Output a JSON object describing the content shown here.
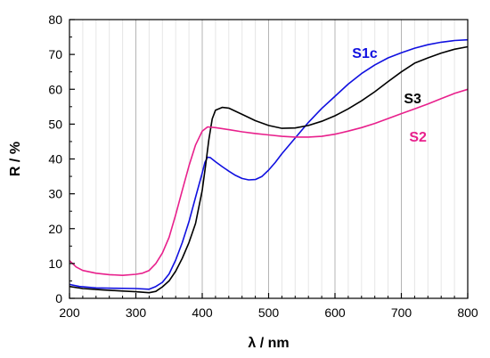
{
  "chart_data": {
    "type": "line",
    "xlabel": "λ / nm",
    "ylabel": "R / %",
    "xlim": [
      200,
      800
    ],
    "ylim": [
      0,
      80
    ],
    "xticks": [
      200,
      300,
      400,
      500,
      600,
      700,
      800
    ],
    "yticks": [
      0,
      10,
      20,
      30,
      40,
      50,
      60,
      70,
      80
    ],
    "x_minor_step": 20,
    "grid": "vertical",
    "legend": "inline labels",
    "series": [
      {
        "name": "S1c",
        "color": "#1010e0",
        "label_at": [
          645,
          69
        ],
        "points": [
          [
            200,
            4
          ],
          [
            215,
            3.4
          ],
          [
            240,
            3
          ],
          [
            270,
            2.9
          ],
          [
            300,
            2.8
          ],
          [
            320,
            2.6
          ],
          [
            330,
            3.4
          ],
          [
            340,
            4.6
          ],
          [
            350,
            7
          ],
          [
            360,
            11
          ],
          [
            370,
            16
          ],
          [
            380,
            22
          ],
          [
            390,
            29
          ],
          [
            400,
            36
          ],
          [
            404,
            39
          ],
          [
            408,
            40.5
          ],
          [
            412,
            40.4
          ],
          [
            420,
            39.2
          ],
          [
            430,
            37.8
          ],
          [
            440,
            36.5
          ],
          [
            450,
            35.3
          ],
          [
            460,
            34.4
          ],
          [
            470,
            34
          ],
          [
            480,
            34.1
          ],
          [
            490,
            35
          ],
          [
            500,
            36.8
          ],
          [
            510,
            39
          ],
          [
            520,
            41.5
          ],
          [
            540,
            46
          ],
          [
            560,
            50.5
          ],
          [
            580,
            54.5
          ],
          [
            600,
            58
          ],
          [
            620,
            61.5
          ],
          [
            640,
            64.5
          ],
          [
            660,
            67
          ],
          [
            680,
            69
          ],
          [
            700,
            70.5
          ],
          [
            720,
            71.8
          ],
          [
            740,
            72.8
          ],
          [
            760,
            73.5
          ],
          [
            780,
            74
          ],
          [
            800,
            74.2
          ]
        ]
      },
      {
        "name": "S3",
        "color": "#000000",
        "label_at": [
          717,
          56
        ],
        "points": [
          [
            200,
            3.4
          ],
          [
            220,
            2.8
          ],
          [
            250,
            2.4
          ],
          [
            280,
            2.1
          ],
          [
            300,
            1.9
          ],
          [
            320,
            1.6
          ],
          [
            330,
            2
          ],
          [
            340,
            3.3
          ],
          [
            350,
            5
          ],
          [
            360,
            7.8
          ],
          [
            370,
            11.5
          ],
          [
            380,
            16
          ],
          [
            390,
            21.5
          ],
          [
            400,
            31
          ],
          [
            405,
            38
          ],
          [
            410,
            45.5
          ],
          [
            415,
            51.5
          ],
          [
            420,
            54
          ],
          [
            430,
            54.8
          ],
          [
            440,
            54.6
          ],
          [
            460,
            52.8
          ],
          [
            480,
            51
          ],
          [
            500,
            49.6
          ],
          [
            520,
            48.8
          ],
          [
            540,
            48.9
          ],
          [
            560,
            49.6
          ],
          [
            580,
            50.8
          ],
          [
            600,
            52.4
          ],
          [
            620,
            54.4
          ],
          [
            640,
            56.7
          ],
          [
            660,
            59.3
          ],
          [
            680,
            62.2
          ],
          [
            700,
            65
          ],
          [
            720,
            67.5
          ],
          [
            740,
            69
          ],
          [
            760,
            70.4
          ],
          [
            780,
            71.5
          ],
          [
            800,
            72.2
          ]
        ]
      },
      {
        "name": "S2",
        "color": "#e8208c",
        "label_at": [
          725,
          45
        ],
        "points": [
          [
            200,
            10.8
          ],
          [
            210,
            9
          ],
          [
            220,
            8
          ],
          [
            240,
            7.2
          ],
          [
            260,
            6.8
          ],
          [
            280,
            6.6
          ],
          [
            300,
            6.9
          ],
          [
            310,
            7.2
          ],
          [
            320,
            8
          ],
          [
            330,
            10
          ],
          [
            340,
            13
          ],
          [
            350,
            17.5
          ],
          [
            360,
            24
          ],
          [
            370,
            31
          ],
          [
            380,
            38
          ],
          [
            390,
            44
          ],
          [
            400,
            48
          ],
          [
            408,
            49.2
          ],
          [
            420,
            49
          ],
          [
            440,
            48.4
          ],
          [
            460,
            47.8
          ],
          [
            480,
            47.3
          ],
          [
            500,
            46.9
          ],
          [
            520,
            46.5
          ],
          [
            540,
            46.3
          ],
          [
            560,
            46.3
          ],
          [
            580,
            46.5
          ],
          [
            600,
            47.1
          ],
          [
            620,
            48
          ],
          [
            640,
            49
          ],
          [
            660,
            50.2
          ],
          [
            680,
            51.6
          ],
          [
            700,
            53
          ],
          [
            720,
            54.4
          ],
          [
            740,
            55.8
          ],
          [
            760,
            57.3
          ],
          [
            780,
            58.8
          ],
          [
            800,
            60
          ]
        ]
      }
    ]
  }
}
